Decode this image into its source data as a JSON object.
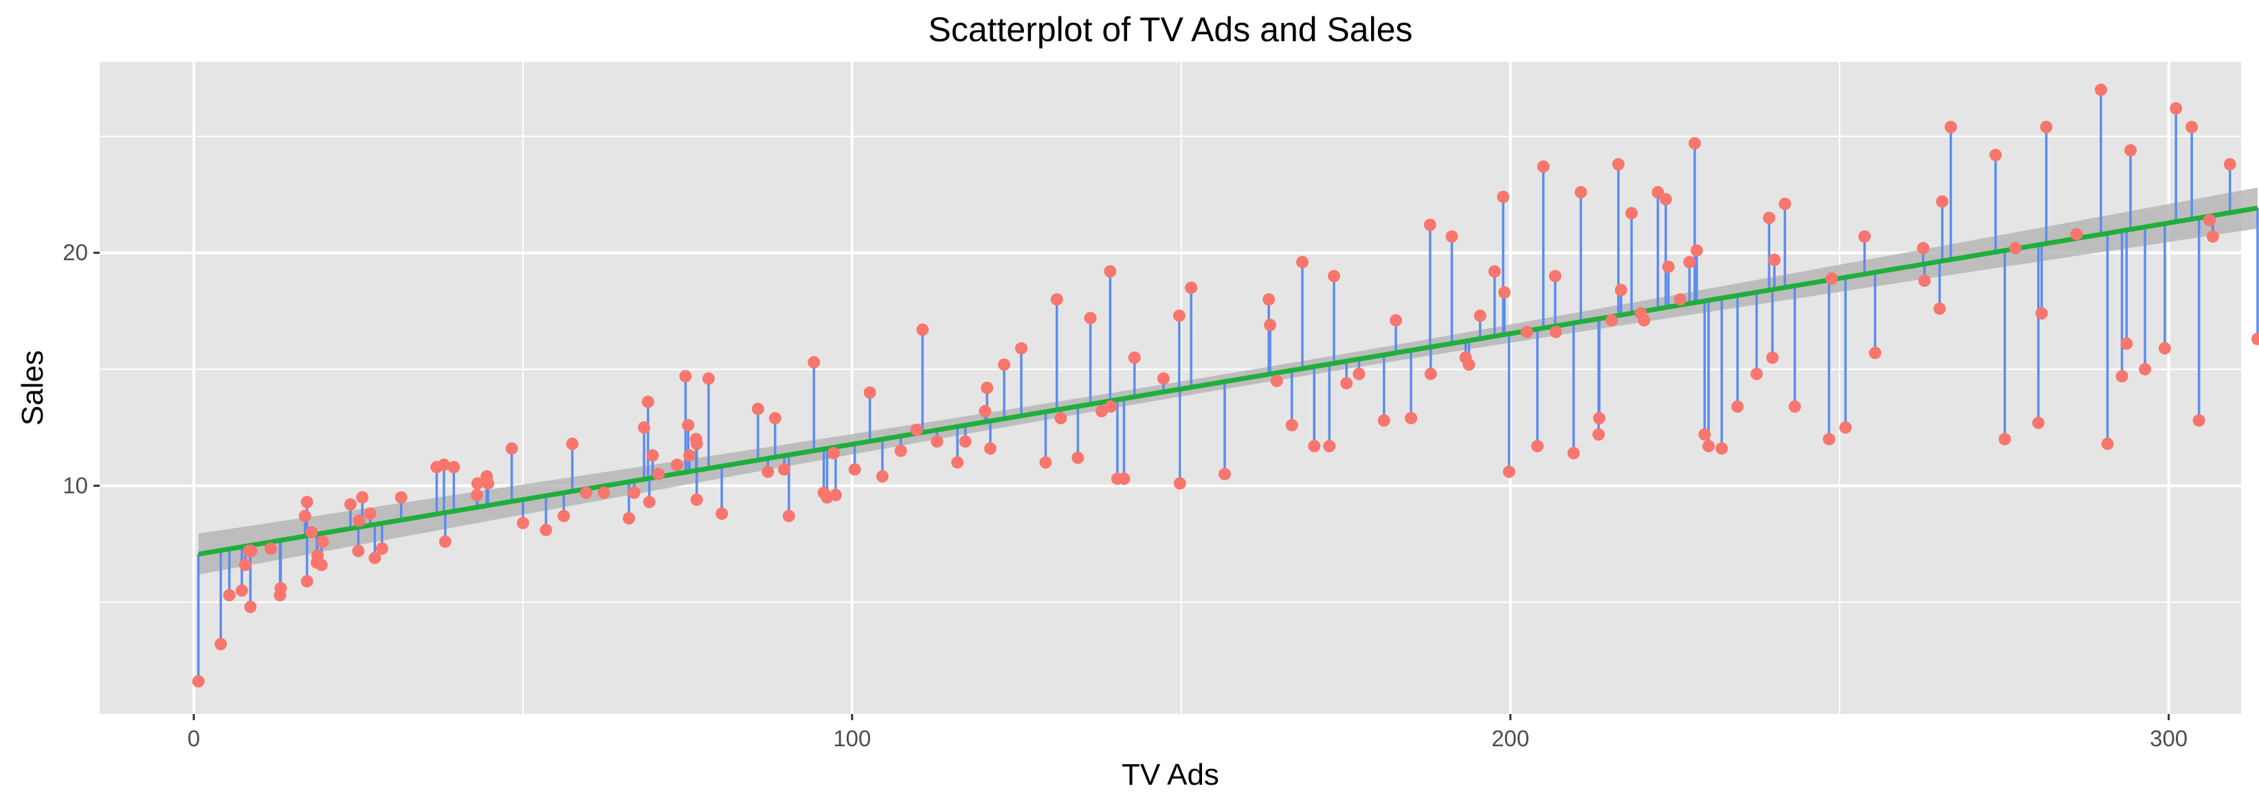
{
  "chart_data": {
    "type": "scatter",
    "title": "Scatterplot of TV Ads and Sales",
    "xlabel": "TV Ads",
    "ylabel": "Sales",
    "xlim": [
      -14.3,
      311.0
    ],
    "ylim": [
      0.2,
      28.2
    ],
    "x_ticks": [
      0,
      100,
      200,
      300
    ],
    "y_ticks": [
      10,
      20
    ],
    "grid": true,
    "legend": "none",
    "colors": {
      "panel": "#e5e5e5",
      "grid": "#ffffff",
      "points": "#f8766d",
      "residuals": "#5b8cf0",
      "fit_line": "#1fae3b",
      "confidence_band": "#b3b3b3"
    },
    "fit": {
      "intercept": 7.03,
      "slope": 0.0475,
      "ci_halfwidth_ends": 0.88,
      "ci_halfwidth_mid": 0.32
    },
    "points": [
      {
        "x": 0.7,
        "y": 1.6
      },
      {
        "x": 4.1,
        "y": 3.2
      },
      {
        "x": 5.4,
        "y": 5.3
      },
      {
        "x": 7.3,
        "y": 5.5
      },
      {
        "x": 7.8,
        "y": 6.6
      },
      {
        "x": 8.4,
        "y": 7.2
      },
      {
        "x": 8.6,
        "y": 4.8
      },
      {
        "x": 8.7,
        "y": 7.2
      },
      {
        "x": 11.7,
        "y": 7.3
      },
      {
        "x": 13.1,
        "y": 5.3
      },
      {
        "x": 13.2,
        "y": 5.6
      },
      {
        "x": 16.9,
        "y": 8.7
      },
      {
        "x": 17.2,
        "y": 5.9
      },
      {
        "x": 17.2,
        "y": 9.3
      },
      {
        "x": 17.9,
        "y": 8.0
      },
      {
        "x": 18.7,
        "y": 6.7
      },
      {
        "x": 18.8,
        "y": 7.0
      },
      {
        "x": 19.4,
        "y": 6.6
      },
      {
        "x": 19.6,
        "y": 7.6
      },
      {
        "x": 23.8,
        "y": 9.2
      },
      {
        "x": 25.0,
        "y": 7.2
      },
      {
        "x": 25.1,
        "y": 8.5
      },
      {
        "x": 25.6,
        "y": 9.5
      },
      {
        "x": 26.8,
        "y": 8.8
      },
      {
        "x": 27.5,
        "y": 6.9
      },
      {
        "x": 28.6,
        "y": 7.3
      },
      {
        "x": 31.5,
        "y": 9.5
      },
      {
        "x": 36.9,
        "y": 10.8
      },
      {
        "x": 38.0,
        "y": 10.9
      },
      {
        "x": 38.2,
        "y": 7.6
      },
      {
        "x": 39.5,
        "y": 10.8
      },
      {
        "x": 43.0,
        "y": 9.6
      },
      {
        "x": 43.1,
        "y": 10.1
      },
      {
        "x": 44.5,
        "y": 10.4
      },
      {
        "x": 44.7,
        "y": 10.1
      },
      {
        "x": 48.3,
        "y": 11.6
      },
      {
        "x": 50.0,
        "y": 8.4
      },
      {
        "x": 53.5,
        "y": 8.1
      },
      {
        "x": 56.2,
        "y": 8.7
      },
      {
        "x": 57.5,
        "y": 11.8
      },
      {
        "x": 59.6,
        "y": 9.7
      },
      {
        "x": 62.3,
        "y": 9.7
      },
      {
        "x": 66.1,
        "y": 8.6
      },
      {
        "x": 66.9,
        "y": 9.7
      },
      {
        "x": 68.4,
        "y": 12.5
      },
      {
        "x": 69.0,
        "y": 13.6
      },
      {
        "x": 69.2,
        "y": 9.3
      },
      {
        "x": 69.7,
        "y": 11.3
      },
      {
        "x": 70.6,
        "y": 10.5
      },
      {
        "x": 73.4,
        "y": 10.9
      },
      {
        "x": 74.7,
        "y": 14.7
      },
      {
        "x": 75.1,
        "y": 12.6
      },
      {
        "x": 75.3,
        "y": 11.3
      },
      {
        "x": 76.3,
        "y": 12.0
      },
      {
        "x": 76.4,
        "y": 9.4
      },
      {
        "x": 76.4,
        "y": 11.8
      },
      {
        "x": 78.2,
        "y": 14.6
      },
      {
        "x": 80.2,
        "y": 8.8
      },
      {
        "x": 85.7,
        "y": 13.3
      },
      {
        "x": 87.2,
        "y": 10.6
      },
      {
        "x": 88.3,
        "y": 12.9
      },
      {
        "x": 89.7,
        "y": 10.7
      },
      {
        "x": 90.4,
        "y": 8.7
      },
      {
        "x": 94.2,
        "y": 15.3
      },
      {
        "x": 95.7,
        "y": 9.7
      },
      {
        "x": 96.2,
        "y": 9.5
      },
      {
        "x": 97.2,
        "y": 11.4
      },
      {
        "x": 97.5,
        "y": 9.6
      },
      {
        "x": 100.4,
        "y": 10.7
      },
      {
        "x": 102.7,
        "y": 14.0
      },
      {
        "x": 104.6,
        "y": 10.4
      },
      {
        "x": 107.4,
        "y": 11.5
      },
      {
        "x": 109.8,
        "y": 12.4
      },
      {
        "x": 110.7,
        "y": 16.7
      },
      {
        "x": 112.9,
        "y": 11.9
      },
      {
        "x": 116.0,
        "y": 11.0
      },
      {
        "x": 117.2,
        "y": 11.9
      },
      {
        "x": 120.2,
        "y": 13.2
      },
      {
        "x": 120.5,
        "y": 14.2
      },
      {
        "x": 121.0,
        "y": 11.6
      },
      {
        "x": 123.1,
        "y": 15.2
      },
      {
        "x": 125.7,
        "y": 15.9
      },
      {
        "x": 129.4,
        "y": 11.0
      },
      {
        "x": 131.1,
        "y": 18.0
      },
      {
        "x": 131.7,
        "y": 12.9
      },
      {
        "x": 134.3,
        "y": 11.2
      },
      {
        "x": 136.2,
        "y": 17.2
      },
      {
        "x": 137.9,
        "y": 13.2
      },
      {
        "x": 139.2,
        "y": 19.2
      },
      {
        "x": 139.3,
        "y": 13.4
      },
      {
        "x": 140.3,
        "y": 10.3
      },
      {
        "x": 141.3,
        "y": 10.3
      },
      {
        "x": 142.9,
        "y": 15.5
      },
      {
        "x": 147.3,
        "y": 14.6
      },
      {
        "x": 149.7,
        "y": 17.3
      },
      {
        "x": 149.8,
        "y": 10.1
      },
      {
        "x": 151.5,
        "y": 18.5
      },
      {
        "x": 156.6,
        "y": 10.5
      },
      {
        "x": 163.3,
        "y": 18.0
      },
      {
        "x": 163.5,
        "y": 16.9
      },
      {
        "x": 164.5,
        "y": 14.5
      },
      {
        "x": 166.8,
        "y": 12.6
      },
      {
        "x": 168.4,
        "y": 19.6
      },
      {
        "x": 170.2,
        "y": 11.7
      },
      {
        "x": 172.5,
        "y": 11.7
      },
      {
        "x": 173.2,
        "y": 19.0
      },
      {
        "x": 175.1,
        "y": 14.4
      },
      {
        "x": 177.0,
        "y": 14.8
      },
      {
        "x": 180.8,
        "y": 12.8
      },
      {
        "x": 182.6,
        "y": 17.1
      },
      {
        "x": 184.9,
        "y": 12.9
      },
      {
        "x": 187.8,
        "y": 21.2
      },
      {
        "x": 187.9,
        "y": 14.8
      },
      {
        "x": 191.1,
        "y": 20.7
      },
      {
        "x": 193.2,
        "y": 15.5
      },
      {
        "x": 193.7,
        "y": 15.2
      },
      {
        "x": 195.4,
        "y": 17.3
      },
      {
        "x": 197.6,
        "y": 19.2
      },
      {
        "x": 198.9,
        "y": 22.4
      },
      {
        "x": 199.1,
        "y": 18.3
      },
      {
        "x": 199.8,
        "y": 10.6
      },
      {
        "x": 202.5,
        "y": 16.6
      },
      {
        "x": 204.1,
        "y": 11.7
      },
      {
        "x": 205.0,
        "y": 23.7
      },
      {
        "x": 206.8,
        "y": 19.0
      },
      {
        "x": 206.9,
        "y": 16.6
      },
      {
        "x": 209.6,
        "y": 11.4
      },
      {
        "x": 210.7,
        "y": 22.6
      },
      {
        "x": 213.4,
        "y": 12.2
      },
      {
        "x": 213.5,
        "y": 12.9
      },
      {
        "x": 215.4,
        "y": 17.1
      },
      {
        "x": 216.4,
        "y": 23.8
      },
      {
        "x": 216.8,
        "y": 18.4
      },
      {
        "x": 218.4,
        "y": 21.7
      },
      {
        "x": 219.8,
        "y": 17.4
      },
      {
        "x": 220.3,
        "y": 17.1
      },
      {
        "x": 222.4,
        "y": 22.6
      },
      {
        "x": 223.6,
        "y": 22.3
      },
      {
        "x": 224.0,
        "y": 19.4
      },
      {
        "x": 225.8,
        "y": 18.0
      },
      {
        "x": 227.2,
        "y": 19.6
      },
      {
        "x": 228.0,
        "y": 24.7
      },
      {
        "x": 228.3,
        "y": 20.1
      },
      {
        "x": 229.5,
        "y": 12.2
      },
      {
        "x": 230.1,
        "y": 11.7
      },
      {
        "x": 232.1,
        "y": 11.6
      },
      {
        "x": 234.5,
        "y": 13.4
      },
      {
        "x": 237.4,
        "y": 14.8
      },
      {
        "x": 239.3,
        "y": 21.5
      },
      {
        "x": 239.8,
        "y": 15.5
      },
      {
        "x": 240.1,
        "y": 19.7
      },
      {
        "x": 241.7,
        "y": 22.1
      },
      {
        "x": 243.2,
        "y": 13.4
      },
      {
        "x": 248.4,
        "y": 12.0
      },
      {
        "x": 248.8,
        "y": 18.9
      },
      {
        "x": 250.9,
        "y": 12.5
      },
      {
        "x": 253.8,
        "y": 20.7
      },
      {
        "x": 255.4,
        "y": 15.7
      },
      {
        "x": 262.7,
        "y": 20.2
      },
      {
        "x": 262.9,
        "y": 18.8
      },
      {
        "x": 265.2,
        "y": 17.6
      },
      {
        "x": 265.6,
        "y": 22.2
      },
      {
        "x": 266.9,
        "y": 25.4
      },
      {
        "x": 273.7,
        "y": 24.2
      },
      {
        "x": 275.1,
        "y": 12.0
      },
      {
        "x": 276.7,
        "y": 20.2
      },
      {
        "x": 280.2,
        "y": 12.7
      },
      {
        "x": 280.7,
        "y": 17.4
      },
      {
        "x": 281.4,
        "y": 25.4
      },
      {
        "x": 286.0,
        "y": 20.8
      },
      {
        "x": 289.7,
        "y": 27.0
      },
      {
        "x": 290.7,
        "y": 11.8
      },
      {
        "x": 292.9,
        "y": 14.7
      },
      {
        "x": 293.6,
        "y": 16.1
      },
      {
        "x": 294.2,
        "y": 24.4
      },
      {
        "x": 296.4,
        "y": 15.0
      },
      {
        "x": 299.4,
        "y": 15.9
      },
      {
        "x": 301.1,
        "y": 26.2
      },
      {
        "x": 303.5,
        "y": 25.4
      },
      {
        "x": 304.6,
        "y": 12.8
      },
      {
        "x": 306.2,
        "y": 21.4
      },
      {
        "x": 306.7,
        "y": 20.7
      },
      {
        "x": 309.3,
        "y": 23.8
      },
      {
        "x": 313.5,
        "y": 16.3
      }
    ]
  }
}
